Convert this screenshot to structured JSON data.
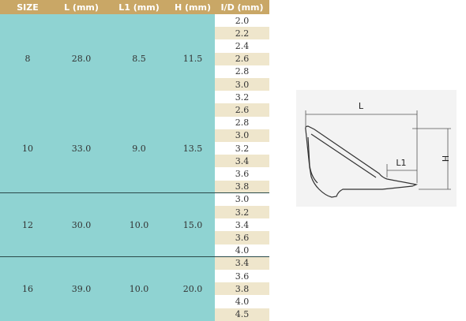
{
  "table": {
    "headers": [
      "SIZE",
      "L (mm)",
      "L1 (mm)",
      "H (mm)",
      "I/D (mm)"
    ],
    "groups": [
      {
        "size": "8",
        "L": "28.0",
        "L1": "8.5",
        "H": "11.5",
        "id": [
          "2.0",
          "2.2",
          "2.4",
          "2.6",
          "2.8",
          "3.0",
          "3.2"
        ]
      },
      {
        "size": "10",
        "L": "33.0",
        "L1": "9.0",
        "H": "13.5",
        "id": [
          "2.6",
          "2.8",
          "3.0",
          "3.2",
          "3.4",
          "3.6",
          "3.8"
        ]
      },
      {
        "size": "12",
        "L": "30.0",
        "L1": "10.0",
        "H": "15.0",
        "id": [
          "3.0",
          "3.2",
          "3.4",
          "3.6",
          "4.0"
        ]
      },
      {
        "size": "16",
        "L": "39.0",
        "L1": "10.0",
        "H": "20.0",
        "id": [
          "3.4",
          "3.6",
          "3.8",
          "4.0",
          "4.5"
        ]
      }
    ]
  },
  "diagram": {
    "labels": {
      "L": "L",
      "L1": "L1",
      "H": "H"
    }
  }
}
